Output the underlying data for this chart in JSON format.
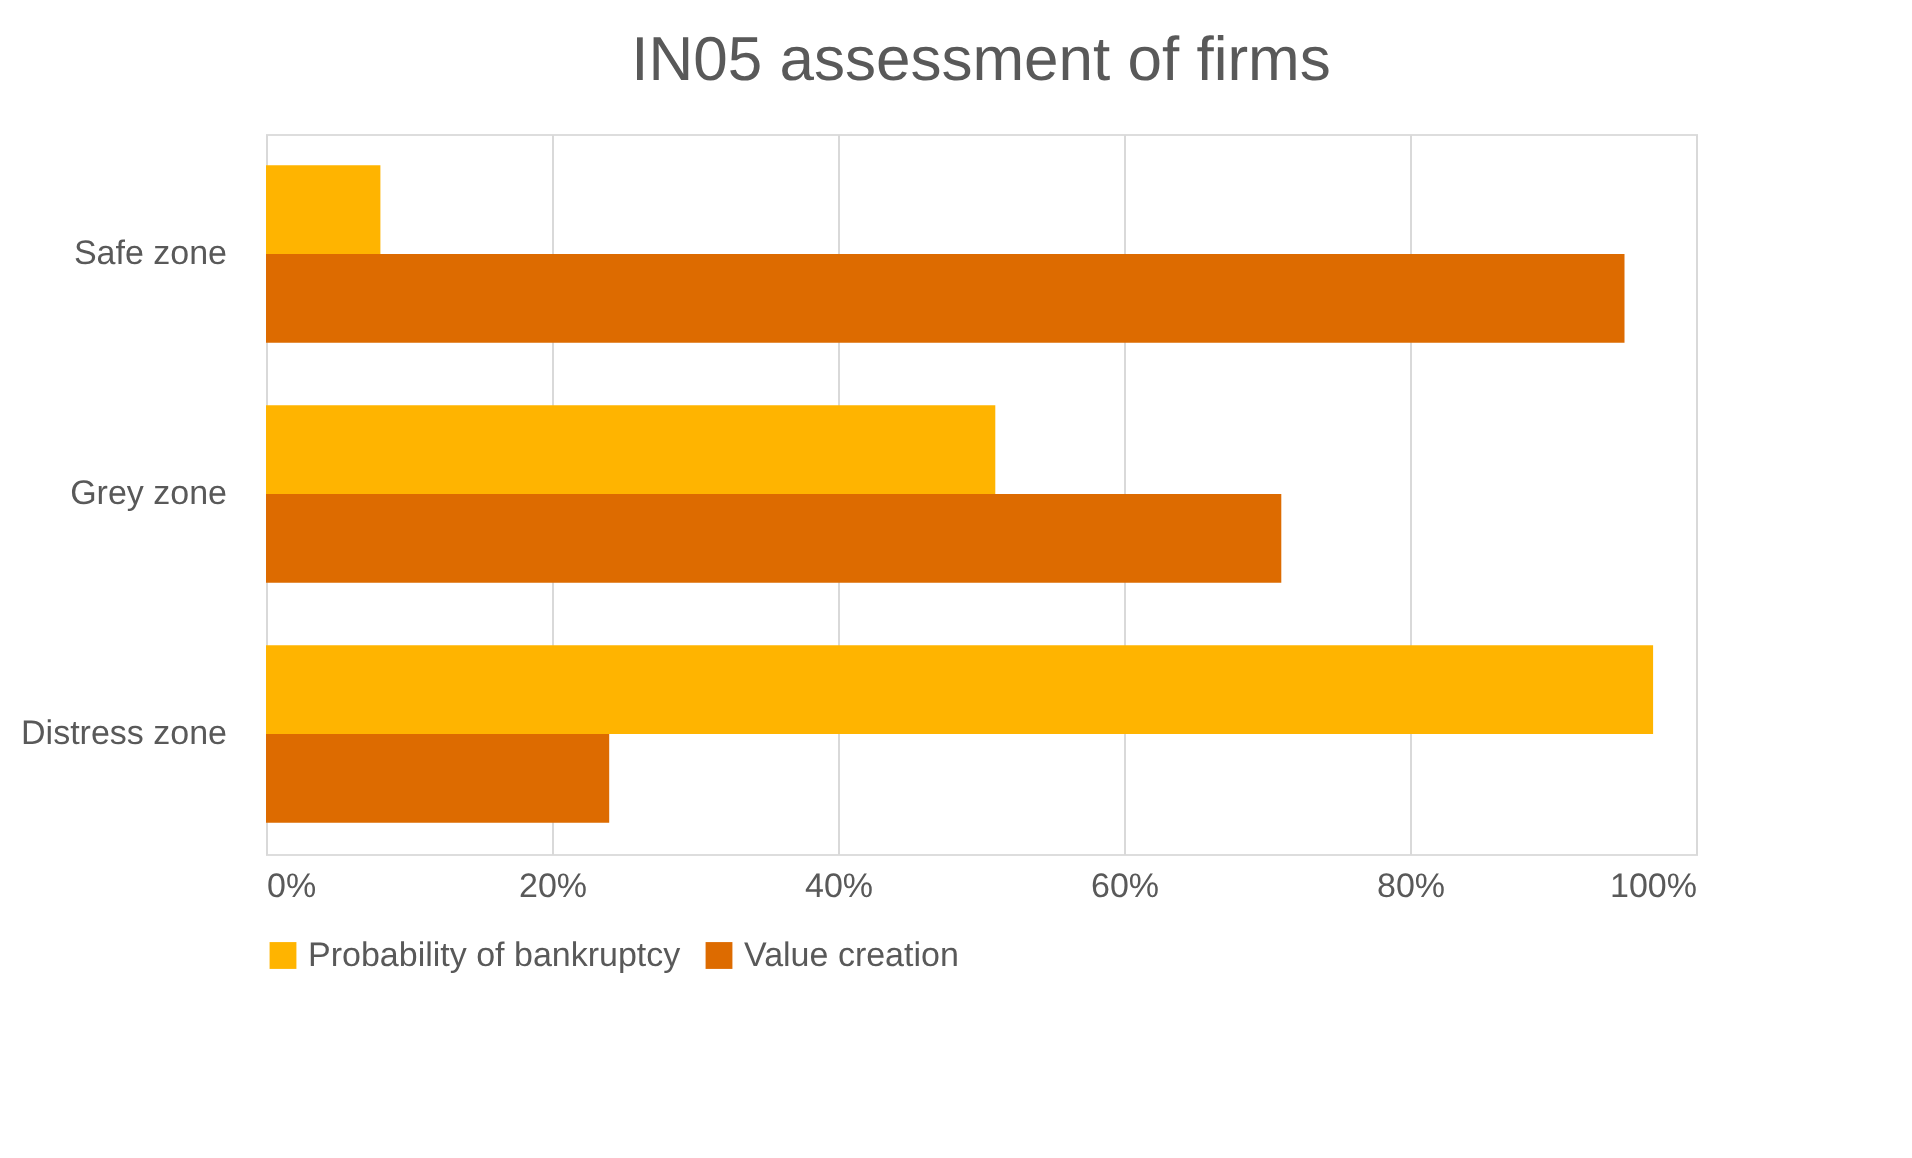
{
  "chart_data": {
    "type": "bar",
    "orientation": "horizontal",
    "title": "IN05 assessment of firms",
    "categories": [
      "Safe zone",
      "Grey zone",
      "Distress zone"
    ],
    "series": [
      {
        "name": "Probability of bankruptcy",
        "color": "#ffb400",
        "values": [
          8,
          51,
          97
        ]
      },
      {
        "name": "Value creation",
        "color": "#dd6b00",
        "values": [
          95,
          71,
          24
        ]
      }
    ],
    "xlim": [
      0,
      100
    ],
    "xticks": [
      {
        "value": 0,
        "label": "0%"
      },
      {
        "value": 20,
        "label": "20%"
      },
      {
        "value": 40,
        "label": "40%"
      },
      {
        "value": 60,
        "label": "60%"
      },
      {
        "value": 80,
        "label": "80%"
      },
      {
        "value": 100,
        "label": "100%"
      }
    ],
    "grid": "x",
    "legend": "bottom"
  }
}
